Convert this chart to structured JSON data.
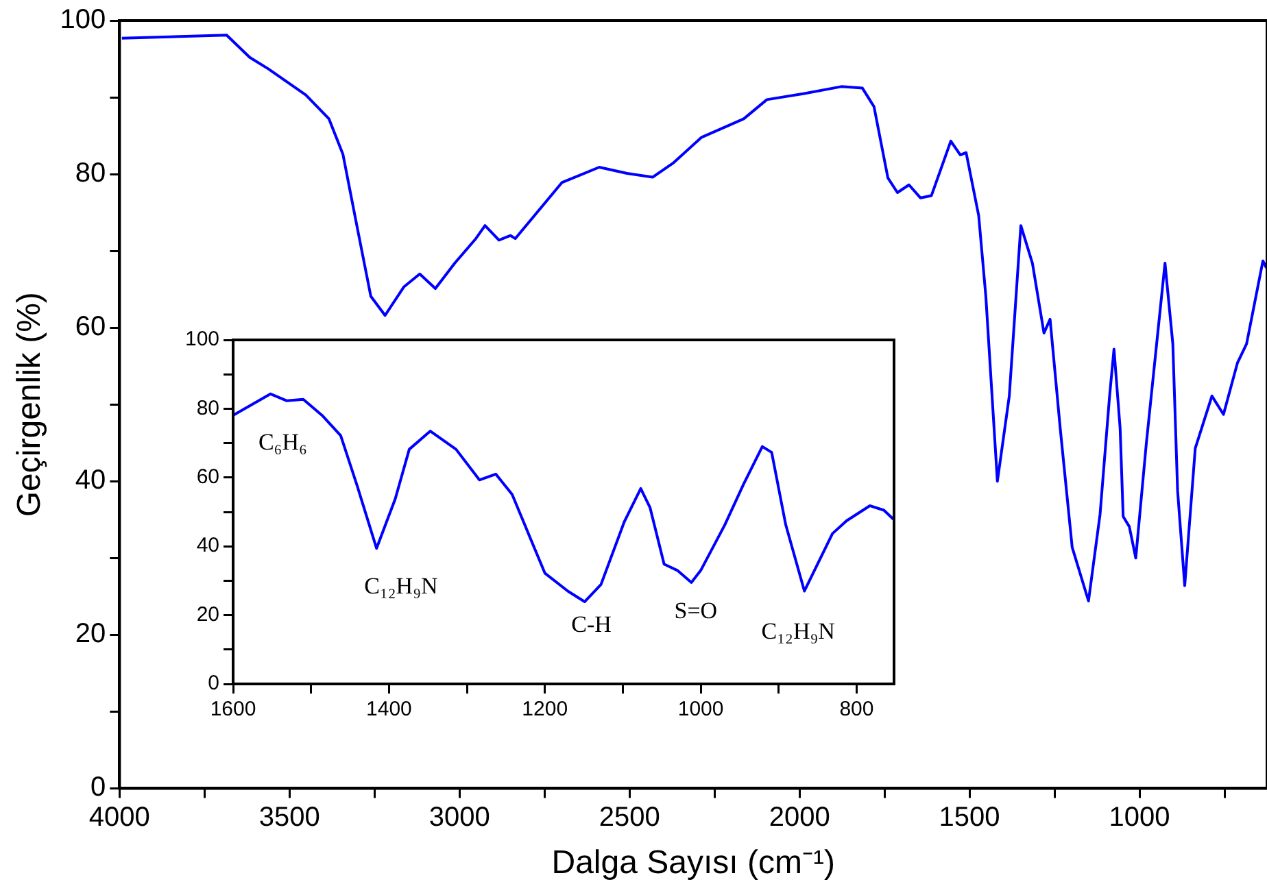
{
  "chart_data": [
    {
      "type": "line",
      "xlabel": "Dalga Sayısı (cm⁻¹)",
      "ylabel": "Geçirgenlik (%)",
      "xlim": [
        4000,
        625
      ],
      "xticks": [
        4000,
        {
          "value": 3750,
          "label": null
        },
        3500,
        {
          "value": 3250,
          "label": null
        },
        3000,
        {
          "value": 2750,
          "label": null
        },
        2500,
        {
          "value": 2250,
          "label": null
        },
        2000,
        {
          "value": 1750,
          "label": null
        },
        1500,
        {
          "value": 1250,
          "label": null
        },
        1000,
        {
          "value": 750,
          "label": null
        }
      ],
      "ylim": [
        0,
        100
      ],
      "yticks": [
        0,
        {
          "value": 10,
          "label": null
        },
        20,
        {
          "value": 30,
          "label": null
        },
        40,
        {
          "value": 50,
          "label": null
        },
        60,
        {
          "value": 70,
          "label": null
        },
        80,
        {
          "value": 90,
          "label": null
        },
        100
      ],
      "series": [
        {
          "color": "#0000ff",
          "x": [
            3993,
            3685,
            3617,
            3562,
            3452,
            3384,
            3343,
            3302,
            3261,
            3219,
            3164,
            3117,
            3071,
            3014,
            2952,
            2925,
            2884,
            2850,
            2836,
            2699,
            2589,
            2507,
            2432,
            2370,
            2288,
            2164,
            2096,
            1986,
            1877,
            1815,
            1781,
            1740,
            1712,
            1678,
            1644,
            1612,
            1555,
            1527,
            1510,
            1473,
            1452,
            1418,
            1383,
            1349,
            1315,
            1281,
            1263,
            1233,
            1198,
            1150,
            1116,
            1088,
            1075,
            1057,
            1048,
            1030,
            1011,
            980,
            925,
            902,
            888,
            867,
            836,
            787,
            753,
            712,
            685,
            637,
            627
          ],
          "values": [
            97.7,
            98.1,
            95.2,
            93.7,
            90.3,
            87.2,
            82.6,
            73.3,
            64.1,
            61.6,
            65.3,
            67.0,
            65.1,
            68.4,
            71.6,
            73.3,
            71.4,
            72.0,
            71.6,
            78.9,
            80.9,
            80.1,
            79.6,
            81.5,
            84.8,
            87.2,
            89.7,
            90.5,
            91.4,
            91.2,
            88.8,
            79.5,
            77.6,
            78.6,
            76.9,
            77.2,
            84.3,
            82.5,
            82.8,
            74.6,
            64.1,
            40.0,
            51.1,
            73.3,
            68.4,
            59.3,
            61.1,
            46.8,
            31.4,
            24.4,
            35.7,
            51.1,
            57.2,
            46.9,
            35.4,
            34.1,
            30.0,
            44.9,
            68.4,
            57.9,
            38.8,
            26.4,
            44.3,
            51.1,
            48.7,
            55.4,
            57.9,
            68.7,
            67.8
          ]
        }
      ]
    },
    {
      "type": "line",
      "xlim": [
        1600,
        752
      ],
      "xticks": [
        1600,
        {
          "value": 1500,
          "label": null
        },
        1400,
        {
          "value": 1300,
          "label": null
        },
        1200,
        {
          "value": 1100,
          "label": null
        },
        1000,
        {
          "value": 900,
          "label": null
        },
        800
      ],
      "ylim": [
        0,
        100
      ],
      "yticks": [
        0,
        {
          "value": 10,
          "label": null
        },
        20,
        {
          "value": 30,
          "label": null
        },
        40,
        {
          "value": 50,
          "label": null
        },
        60,
        {
          "value": 70,
          "label": null
        },
        80,
        {
          "value": 90,
          "label": null
        },
        100
      ],
      "annotations": [
        "C₆H₆",
        "C₁₂H₉N",
        "C-H",
        "S=O",
        "C₁₂H₉N"
      ],
      "series": [
        {
          "color": "#0000ff",
          "x": [
            1600,
            1552,
            1531,
            1510,
            1486,
            1462,
            1441,
            1416,
            1392,
            1374,
            1347,
            1314,
            1284,
            1263,
            1242,
            1218,
            1200,
            1170,
            1149,
            1128,
            1098,
            1077,
            1065,
            1047,
            1030,
            1012,
            1000,
            969,
            945,
            921,
            909,
            891,
            867,
            831,
            813,
            783,
            765,
            753
          ],
          "values": [
            78.1,
            84.3,
            82.3,
            82.7,
            78.1,
            72.2,
            57.7,
            39.4,
            53.8,
            68.2,
            73.5,
            68.2,
            59.3,
            61.0,
            55.1,
            42.0,
            32.2,
            26.9,
            23.9,
            28.9,
            47.2,
            56.8,
            51.2,
            34.8,
            33.0,
            29.5,
            33.0,
            46.3,
            58.1,
            69.0,
            67.3,
            46.3,
            27.0,
            43.7,
            47.4,
            51.8,
            50.5,
            47.9
          ]
        }
      ]
    }
  ]
}
